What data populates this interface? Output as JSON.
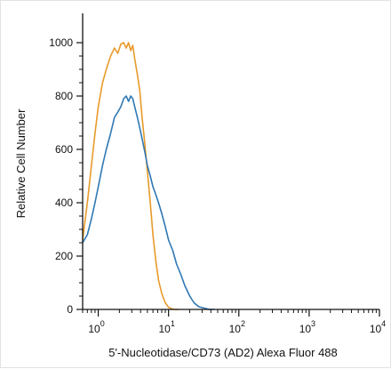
{
  "chart_data": {
    "type": "line",
    "title": "",
    "xlabel": "5'-Nucleotidase/CD73 (AD2) Alexa Fluor 488",
    "ylabel": "Relative Cell Number",
    "xscale": "log",
    "xlim": [
      0.6,
      10000
    ],
    "ylim": [
      0,
      1050
    ],
    "x_ticks": [
      {
        "value": 1,
        "base": "10",
        "exp": "0"
      },
      {
        "value": 10,
        "base": "10",
        "exp": "1"
      },
      {
        "value": 100,
        "base": "10",
        "exp": "2"
      },
      {
        "value": 1000,
        "base": "10",
        "exp": "3"
      },
      {
        "value": 10000,
        "base": "10",
        "exp": "4"
      }
    ],
    "y_ticks": [
      0,
      200,
      400,
      600,
      800,
      1000
    ],
    "grid": false,
    "legend": "none",
    "series": [
      {
        "color": "#e89a2c",
        "x": [
          0.6,
          0.7,
          0.8,
          0.9,
          1.0,
          1.15,
          1.3,
          1.5,
          1.7,
          1.9,
          2.1,
          2.3,
          2.5,
          2.7,
          2.9,
          3.1,
          3.3,
          3.6,
          3.9,
          4.2,
          4.6,
          5.0,
          5.5,
          6.0,
          6.6,
          7.2,
          8.0,
          9.0,
          10.0,
          11.0,
          12.0,
          14.0
        ],
        "y": [
          260,
          400,
          540,
          660,
          760,
          850,
          900,
          950,
          980,
          960,
          995,
          1000,
          980,
          1000,
          970,
          990,
          940,
          880,
          820,
          720,
          620,
          520,
          400,
          280,
          180,
          110,
          60,
          25,
          8,
          3,
          0,
          0
        ]
      },
      {
        "color": "#2f78b4",
        "x": [
          0.6,
          0.7,
          0.8,
          0.9,
          1.0,
          1.15,
          1.3,
          1.5,
          1.7,
          1.9,
          2.1,
          2.3,
          2.5,
          2.7,
          2.9,
          3.1,
          3.3,
          3.6,
          3.9,
          4.2,
          4.6,
          5.0,
          5.5,
          6.0,
          6.6,
          7.2,
          8.0,
          9.0,
          10.0,
          11.5,
          13.0,
          15.0,
          17.0,
          20.0,
          23.0,
          27.0,
          32.0,
          38.0,
          45.0
        ],
        "y": [
          250,
          280,
          340,
          400,
          460,
          540,
          600,
          660,
          720,
          740,
          760,
          790,
          800,
          780,
          800,
          790,
          760,
          720,
          680,
          640,
          590,
          540,
          500,
          460,
          430,
          400,
          360,
          310,
          260,
          220,
          170,
          130,
          90,
          50,
          25,
          10,
          5,
          0,
          0
        ]
      }
    ]
  }
}
